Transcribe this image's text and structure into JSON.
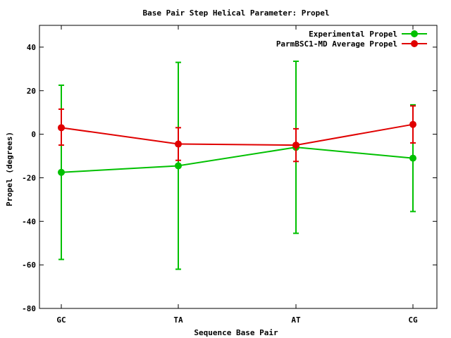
{
  "chart_data": {
    "type": "line",
    "title": "Base Pair Step Helical Parameter: Propel",
    "xlabel": "Sequence Base Pair",
    "ylabel": "Propel (degrees)",
    "categories": [
      "GC",
      "TA",
      "AT",
      "CG"
    ],
    "ylim": [
      -80,
      50
    ],
    "yticks": [
      -80,
      -60,
      -40,
      -20,
      0,
      20,
      40
    ],
    "grid": false,
    "legend_position": "top-right",
    "error_bars": true,
    "series": [
      {
        "name": "Experimental Propel",
        "color": "#00c000",
        "values": [
          -17.5,
          -14.5,
          -6.0,
          -11.0
        ],
        "error_low": [
          -57.5,
          -62.0,
          -45.5,
          -35.5
        ],
        "error_high": [
          22.5,
          33.0,
          33.5,
          13.5
        ]
      },
      {
        "name": "ParmBSC1-MD Average Propel",
        "color": "#e00000",
        "values": [
          3.0,
          -4.5,
          -5.0,
          4.5
        ],
        "error_low": [
          -5.0,
          -12.0,
          -12.5,
          -4.0
        ],
        "error_high": [
          11.5,
          3.0,
          2.5,
          13.0
        ]
      }
    ]
  }
}
